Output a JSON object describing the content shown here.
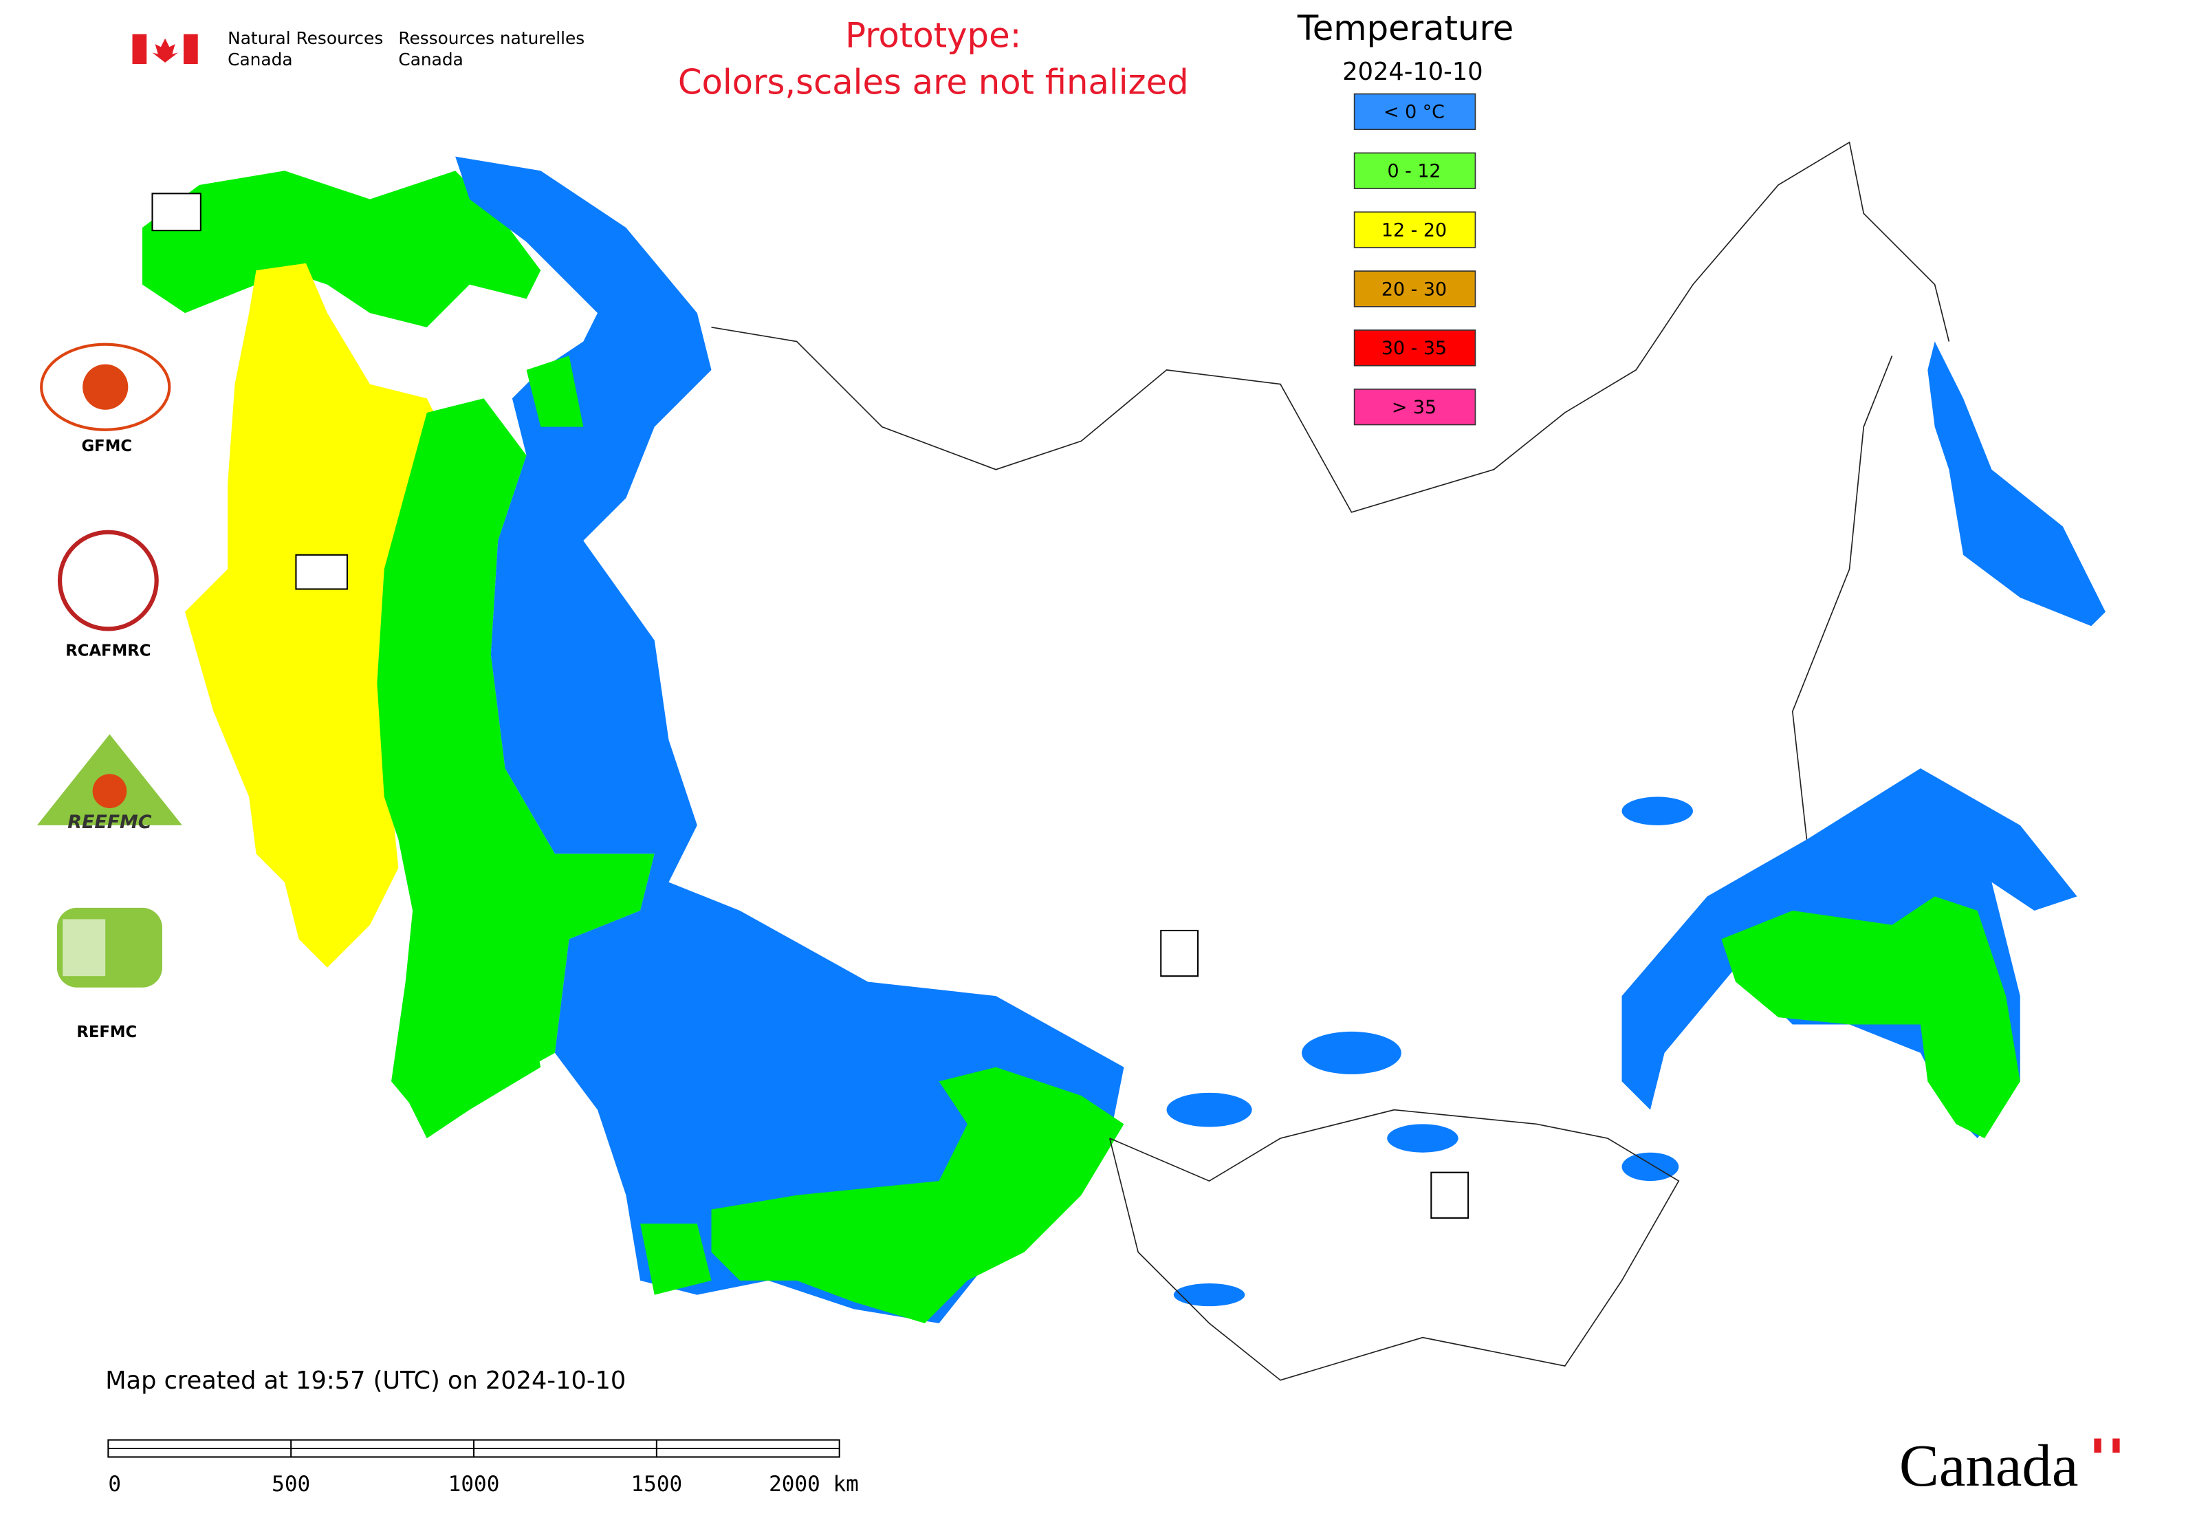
{
  "header": {
    "org_en": [
      "Natural Resources",
      "Canada"
    ],
    "org_fr": [
      "Ressources naturelles",
      "Canada"
    ],
    "note": [
      "Prototype:",
      "Colors,scales are not finalized"
    ]
  },
  "legend": {
    "title": "Temperature",
    "date": "2024-10-10",
    "items": [
      {
        "label": "< 0 °C",
        "color": "#2f8fff"
      },
      {
        "label": "0 - 12",
        "color": "#66ff33"
      },
      {
        "label": "12 - 20",
        "color": "#ffff00"
      },
      {
        "label": "20 - 30",
        "color": "#dd9900"
      },
      {
        "label": "30 - 35",
        "color": "#ff0000"
      },
      {
        "label": "> 35",
        "color": "#ff3399"
      }
    ]
  },
  "logos": [
    "GFMC",
    "RCAFMRC",
    "REEFMC",
    "REFMC"
  ],
  "footer": {
    "created": "Map created at 19:57 (UTC) on 2024-10-10",
    "scale_labels": [
      "0",
      "500",
      "1000",
      "1500",
      "2000 km"
    ],
    "wordmark": "Canada"
  }
}
